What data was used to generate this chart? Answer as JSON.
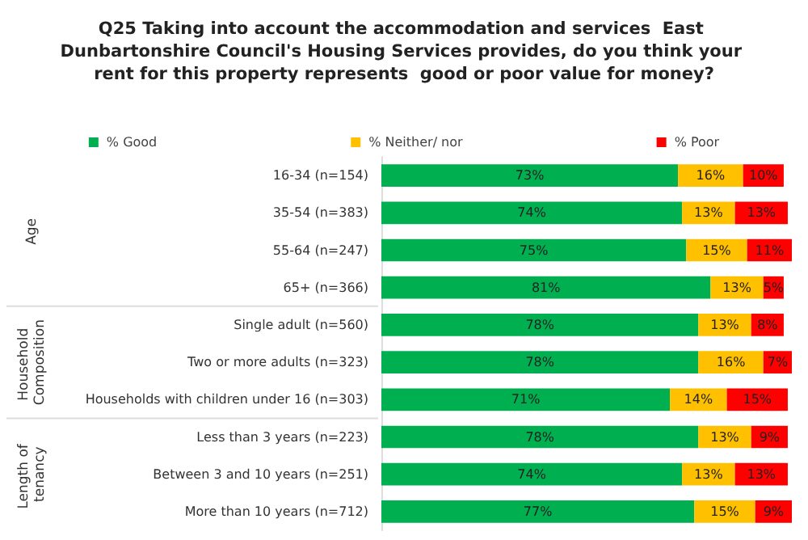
{
  "chart_data": {
    "type": "bar",
    "orientation": "horizontal",
    "stacked": true,
    "legend": "top",
    "title": "Q25 Taking into account the accommodation and services  East Dunbartonshire Council's Housing Services provides, do you think your rent for this property represents  good or poor value for money?",
    "categories": [
      "16-34 (n=154)",
      "35-54 (n=383)",
      "55-64 (n=247)",
      "65+ (n=366)",
      "Single adult (n=560)",
      "Two or more adults (n=323)",
      "Households with children under 16 (n=303)",
      "Less than 3 years (n=223)",
      "Between 3 and 10 years (n=251)",
      "More than 10 years (n=712)"
    ],
    "series": [
      {
        "name": "% Good",
        "color": "#00b050",
        "values": [
          73,
          74,
          75,
          81,
          78,
          78,
          71,
          78,
          74,
          77
        ],
        "value_labels": [
          "73%",
          "74%",
          "75%",
          "81%",
          "78%",
          "78%",
          "71%",
          "78%",
          "74%",
          "77%"
        ]
      },
      {
        "name": "% Neither/ nor",
        "color": "#ffc000",
        "values": [
          16,
          13,
          15,
          13,
          13,
          16,
          14,
          13,
          13,
          15
        ],
        "value_labels": [
          "16%",
          "13%",
          "15%",
          "13%",
          "13%",
          "16%",
          "14%",
          "13%",
          "13%",
          "15%"
        ]
      },
      {
        "name": "% Poor",
        "color": "#ff0000",
        "values": [
          10,
          13,
          11,
          5,
          8,
          7,
          15,
          9,
          13,
          9
        ],
        "value_labels": [
          "10%",
          "13%",
          "11%",
          "5%",
          "8%",
          "7%",
          "15%",
          "9%",
          "13%",
          "9%"
        ]
      }
    ],
    "annotations": [
      "Age",
      "Household Composition",
      "Length of tenancy"
    ]
  }
}
